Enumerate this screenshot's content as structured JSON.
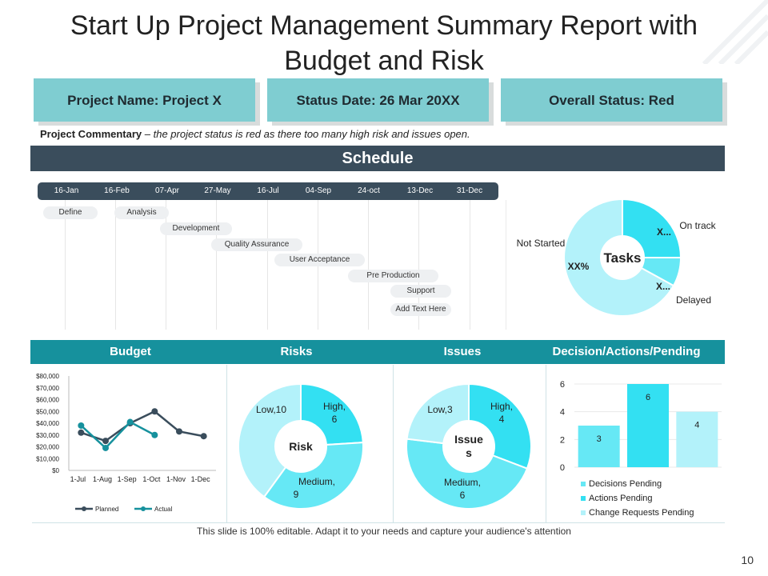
{
  "title": "Start Up Project Management Summary Report with Budget and Risk",
  "header": {
    "project_name": "Project Name: Project X",
    "status_date": "Status Date: 26 Mar 20XX",
    "overall_status": "Overall Status: Red"
  },
  "commentary": {
    "label": "Project Commentary",
    "separator": " – ",
    "text": "the project status is red as there too many high risk and issues open."
  },
  "schedule": {
    "title": "Schedule",
    "dates": [
      "16-Jan",
      "16-Feb",
      "07-Apr",
      "27-May",
      "16-Jul",
      "04-Sep",
      "24-oct",
      "13-Dec",
      "31-Dec"
    ],
    "phases": [
      "Define",
      "Analysis",
      "Development",
      "Quality Assurance",
      "User Acceptance",
      "Pre Production",
      "Support",
      "Add Text Here"
    ]
  },
  "sections": [
    "Budget",
    "Risks",
    "Issues",
    "Decision/Actions/Pending"
  ],
  "footer_note": "This slide is 100% editable. Adapt it to your needs and capture your audience's attention",
  "page_number": "10",
  "colors": {
    "dark": "#3a4d5c",
    "teal": "#16919d",
    "light_teal": "#7fcdd1",
    "cyan": "#33e0f2",
    "cyan_mid": "#66e8f5",
    "cyan_light": "#b3f2fa"
  },
  "chart_data": [
    {
      "type": "pie",
      "title": "Tasks",
      "categories": [
        "On track",
        "Delayed",
        "Not Started"
      ],
      "values": [
        25,
        8,
        67
      ],
      "data_labels": [
        "X...",
        "X...",
        "XX%"
      ]
    },
    {
      "type": "line",
      "title": "Budget",
      "x": [
        "1-Jul",
        "1-Aug",
        "1-Sep",
        "1-Oct",
        "1-Nov",
        "1-Dec"
      ],
      "ylim": [
        0,
        80000
      ],
      "y_ticks": [
        "$0",
        "$10,000",
        "$20,000",
        "$30,000",
        "$40,000",
        "$50,000",
        "$60,000",
        "$70,000",
        "$80,000"
      ],
      "series": [
        {
          "name": "Planned",
          "values": [
            32000,
            25000,
            40000,
            50000,
            33000,
            29000
          ]
        },
        {
          "name": "Actual",
          "values": [
            38000,
            19000,
            41000,
            30000,
            null,
            null
          ]
        }
      ]
    },
    {
      "type": "pie",
      "title": "Risk",
      "categories": [
        "High",
        "Medium",
        "Low"
      ],
      "values": [
        6,
        9,
        10
      ],
      "data_labels": [
        "High, 6",
        "Medium, 9",
        "Low,10"
      ]
    },
    {
      "type": "pie",
      "title": "Issues",
      "categories": [
        "High",
        "Medium",
        "Low"
      ],
      "values": [
        4,
        6,
        3
      ],
      "data_labels": [
        "High, 4",
        "Medium, 6",
        "Low,3"
      ]
    },
    {
      "type": "bar",
      "title": "Decision/Actions/Pending",
      "categories": [
        "Decisions Pending",
        "Actions Pending",
        "Change Requests Pending"
      ],
      "values": [
        3,
        6,
        4
      ],
      "ylim": [
        0,
        6
      ],
      "y_ticks": [
        "0",
        "2",
        "4",
        "6"
      ]
    }
  ]
}
